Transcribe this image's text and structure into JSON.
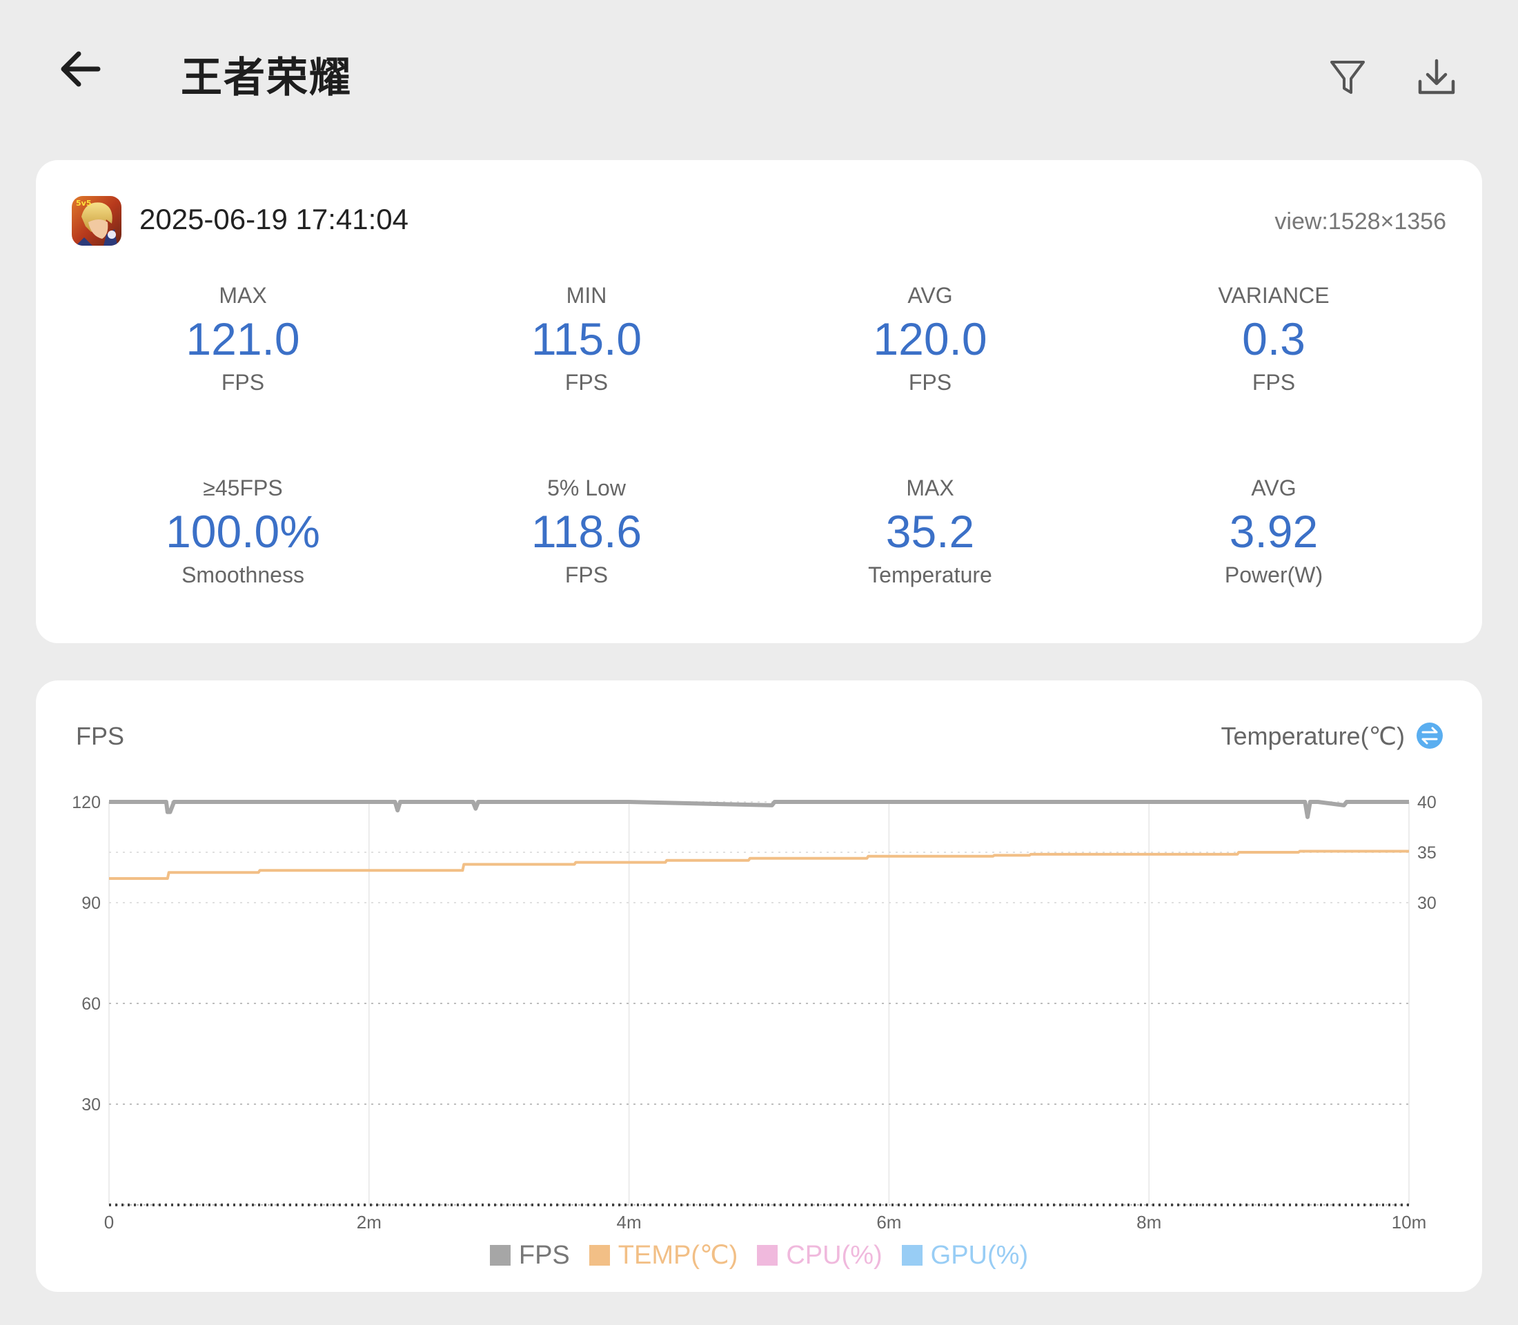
{
  "header": {
    "title": "王者荣耀",
    "back_icon": "back-arrow-icon",
    "filter_icon": "filter-icon",
    "download_icon": "download-icon"
  },
  "session": {
    "app_icon": "game-app-icon",
    "time": "2025-06-19 17:41:04",
    "view": "view:1528×1356"
  },
  "stats": [
    {
      "label": "MAX",
      "value": "121.0",
      "unit": "FPS"
    },
    {
      "label": "MIN",
      "value": "115.0",
      "unit": "FPS"
    },
    {
      "label": "AVG",
      "value": "120.0",
      "unit": "FPS"
    },
    {
      "label": "VARIANCE",
      "value": "0.3",
      "unit": "FPS"
    },
    {
      "label": "≥45FPS",
      "value": "100.0%",
      "unit": "Smoothness"
    },
    {
      "label": "5% Low",
      "value": "118.6",
      "unit": "FPS"
    },
    {
      "label": "MAX",
      "value": "35.2",
      "unit": "Temperature"
    },
    {
      "label": "AVG",
      "value": "3.92",
      "unit": "Power(W)"
    }
  ],
  "colors": {
    "accent": "#3b70c7",
    "fps": "#a6a6a6",
    "temp": "#f2bf86",
    "cpu": "#f0b9dd",
    "gpu": "#98cdf5"
  },
  "chart": {
    "left_title": "FPS",
    "right_title": "Temperature(℃)",
    "swap_icon": "swap-icon"
  },
  "chart_data": {
    "type": "line",
    "x_ticks": [
      "0",
      "2m",
      "4m",
      "6m",
      "8m",
      "10m"
    ],
    "x_range": [
      0,
      10
    ],
    "y_left_ticks": [
      "120",
      "90",
      "60",
      "30"
    ],
    "y_left_range": [
      0,
      120
    ],
    "y_right_ticks": [
      "40",
      "35",
      "30"
    ],
    "y_right_range": [
      0,
      40
    ],
    "grid": true,
    "legend_position": "bottom",
    "legend": [
      "FPS",
      "TEMP(℃)",
      "CPU(%)",
      "GPU(%)"
    ],
    "series": [
      {
        "name": "FPS",
        "x": [
          0,
          0.44,
          0.45,
          0.47,
          0.5,
          1.5,
          2.2,
          2.22,
          2.24,
          2.3,
          2.8,
          2.82,
          2.84,
          3.5,
          4.0,
          5.1,
          5.12,
          5.2,
          6.0,
          7.0,
          8.0,
          9.2,
          9.22,
          9.24,
          9.3,
          9.5,
          9.52,
          10
        ],
        "y": [
          120,
          120,
          117,
          117,
          120,
          120,
          120,
          117.5,
          120,
          120,
          120,
          118,
          120,
          120,
          120,
          119,
          120,
          120,
          120,
          120,
          120,
          120,
          115.5,
          120,
          120,
          119,
          120,
          120
        ]
      },
      {
        "name": "TEMP(℃)",
        "x": [
          0,
          0.45,
          0.46,
          1.15,
          1.16,
          2.72,
          2.73,
          3.58,
          3.59,
          4.28,
          4.29,
          4.92,
          4.93,
          5.83,
          5.84,
          6.8,
          6.81,
          7.08,
          7.09,
          8.68,
          8.69,
          9.15,
          9.16,
          10
        ],
        "y": [
          32.4,
          32.4,
          33.0,
          33.0,
          33.2,
          33.2,
          33.8,
          33.8,
          34.0,
          34.0,
          34.2,
          34.2,
          34.4,
          34.4,
          34.6,
          34.6,
          34.7,
          34.7,
          34.8,
          34.8,
          35.0,
          35.0,
          35.1,
          35.1
        ]
      },
      {
        "name": "CPU(%)",
        "x": [],
        "y": []
      },
      {
        "name": "GPU(%)",
        "x": [],
        "y": []
      }
    ]
  }
}
